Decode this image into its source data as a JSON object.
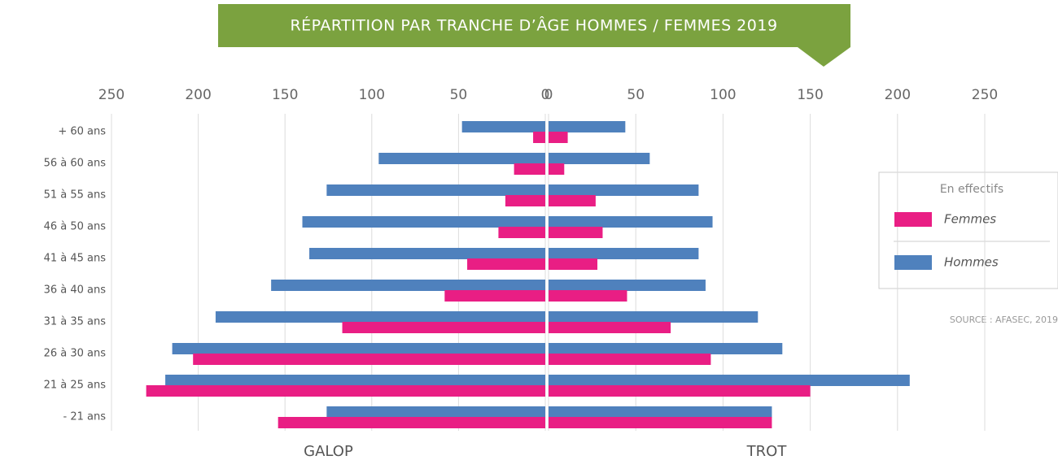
{
  "chart_data": {
    "type": "butterfly",
    "title": "RÉPARTITION PAR TRANCHE D’ÂGE HOMMES / FEMMES 2019",
    "categories": [
      "+ 60 ans",
      "56 à 60 ans",
      "51 à 55 ans",
      "46 à 50 ans",
      "41 à 45 ans",
      "36 à 40 ans",
      "31 à 35 ans",
      "26 à 30 ans",
      "21 à 25 ans",
      "- 21 ans"
    ],
    "panels": [
      "GALOP",
      "TROT"
    ],
    "series": [
      {
        "name": "Hommes",
        "color": "#4f81bd",
        "values": [
          [
            48,
            96,
            126,
            140,
            136,
            158,
            190,
            215,
            219,
            126
          ],
          [
            44,
            58,
            86,
            94,
            86,
            90,
            120,
            134,
            207,
            128
          ]
        ]
      },
      {
        "name": "Femmes",
        "color": "#e91e84",
        "values": [
          [
            7,
            18,
            23,
            27,
            45,
            58,
            117,
            203,
            230,
            154
          ],
          [
            11,
            9,
            27,
            31,
            28,
            45,
            70,
            93,
            150,
            128
          ]
        ]
      }
    ],
    "legend_title": "En effectifs",
    "legend_order": [
      1,
      0
    ],
    "source": "SOURCE : AFASEC, 2019",
    "xlim": [
      0,
      250
    ],
    "xticks": [
      0,
      50,
      100,
      150,
      200,
      250
    ],
    "grid": true
  }
}
